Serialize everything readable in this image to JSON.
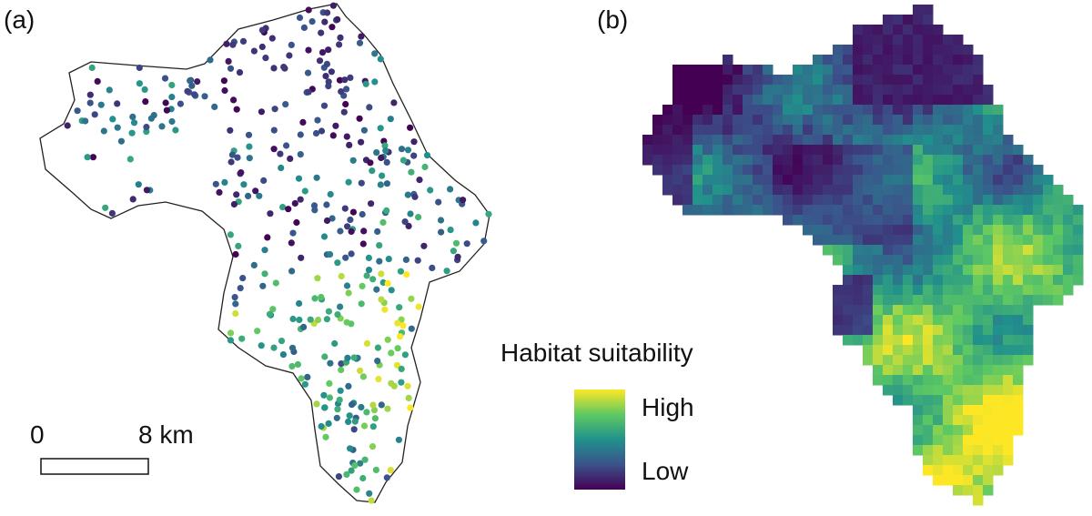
{
  "panels": {
    "a": {
      "label": "(a)"
    },
    "b": {
      "label": "(b)"
    }
  },
  "scale_bar": {
    "start": "0",
    "end": "8 km"
  },
  "legend": {
    "title": "Habitat suitability",
    "high": "High",
    "low": "Low"
  },
  "colors": {
    "viridis": [
      "#440154",
      "#3b528b",
      "#21918c",
      "#5ec962",
      "#fde725"
    ],
    "outline": "#222222"
  }
}
